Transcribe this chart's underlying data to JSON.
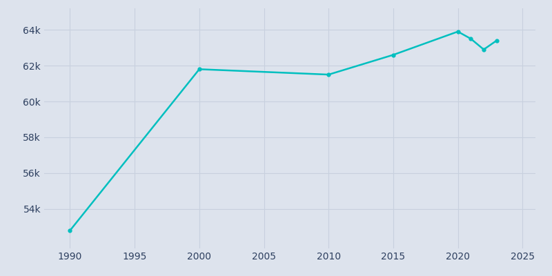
{
  "years": [
    1990,
    2000,
    2010,
    2015,
    2020,
    2021,
    2022,
    2023
  ],
  "population": [
    52800,
    61800,
    61500,
    62600,
    63900,
    63500,
    62900,
    63400
  ],
  "line_color": "#00bfbf",
  "background_color": "#dde3ed",
  "axes_background": "#dde3ed",
  "grid_color": "#c8d0de",
  "text_color": "#2d3f5f",
  "xlim": [
    1988,
    2026
  ],
  "ylim": [
    51800,
    65200
  ],
  "yticks": [
    54000,
    56000,
    58000,
    60000,
    62000,
    64000
  ],
  "xticks": [
    1990,
    1995,
    2000,
    2005,
    2010,
    2015,
    2020,
    2025
  ],
  "linewidth": 1.8,
  "markersize": 3.5
}
